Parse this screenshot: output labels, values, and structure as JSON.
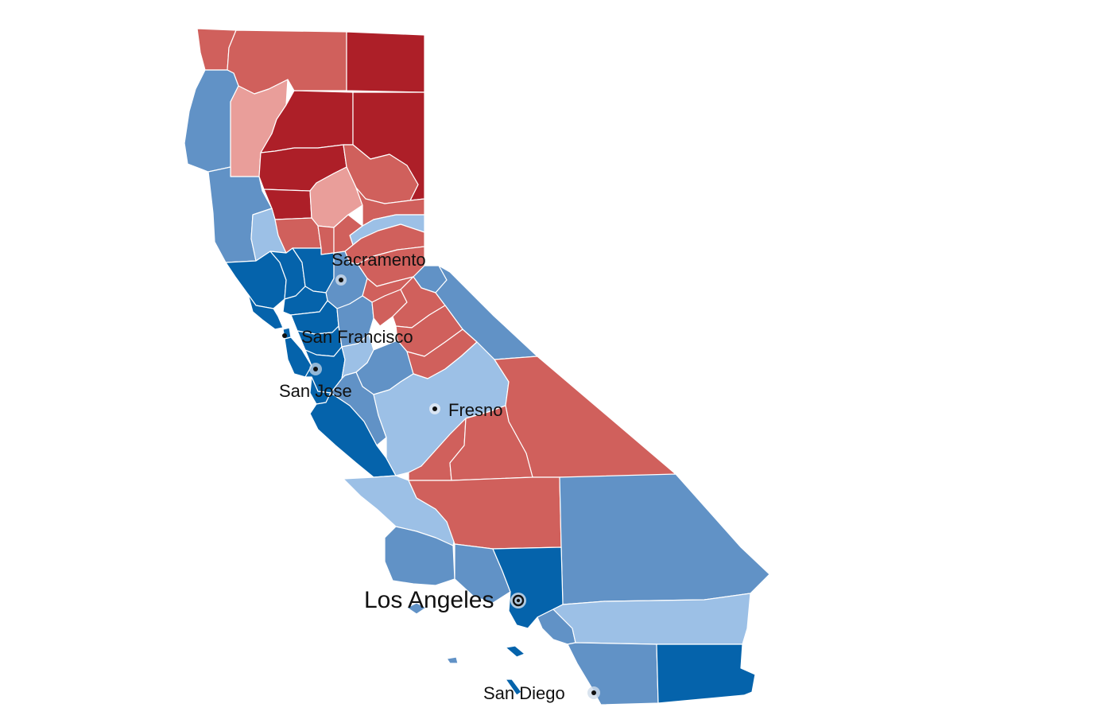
{
  "map": {
    "colors": {
      "strong_rep": "#ad1f28",
      "rep": "#d0605c",
      "lean_rep": "#e99e9a",
      "lean_dem": "#9cc0e6",
      "dem": "#6192c6",
      "strong_dem": "#0563ab"
    },
    "cities": {
      "sacramento": "Sacramento",
      "san_francisco": "San Francisco",
      "san_jose": "San Jose",
      "fresno": "Fresno",
      "los_angeles": "Los Angeles",
      "san_diego": "San Diego"
    }
  }
}
